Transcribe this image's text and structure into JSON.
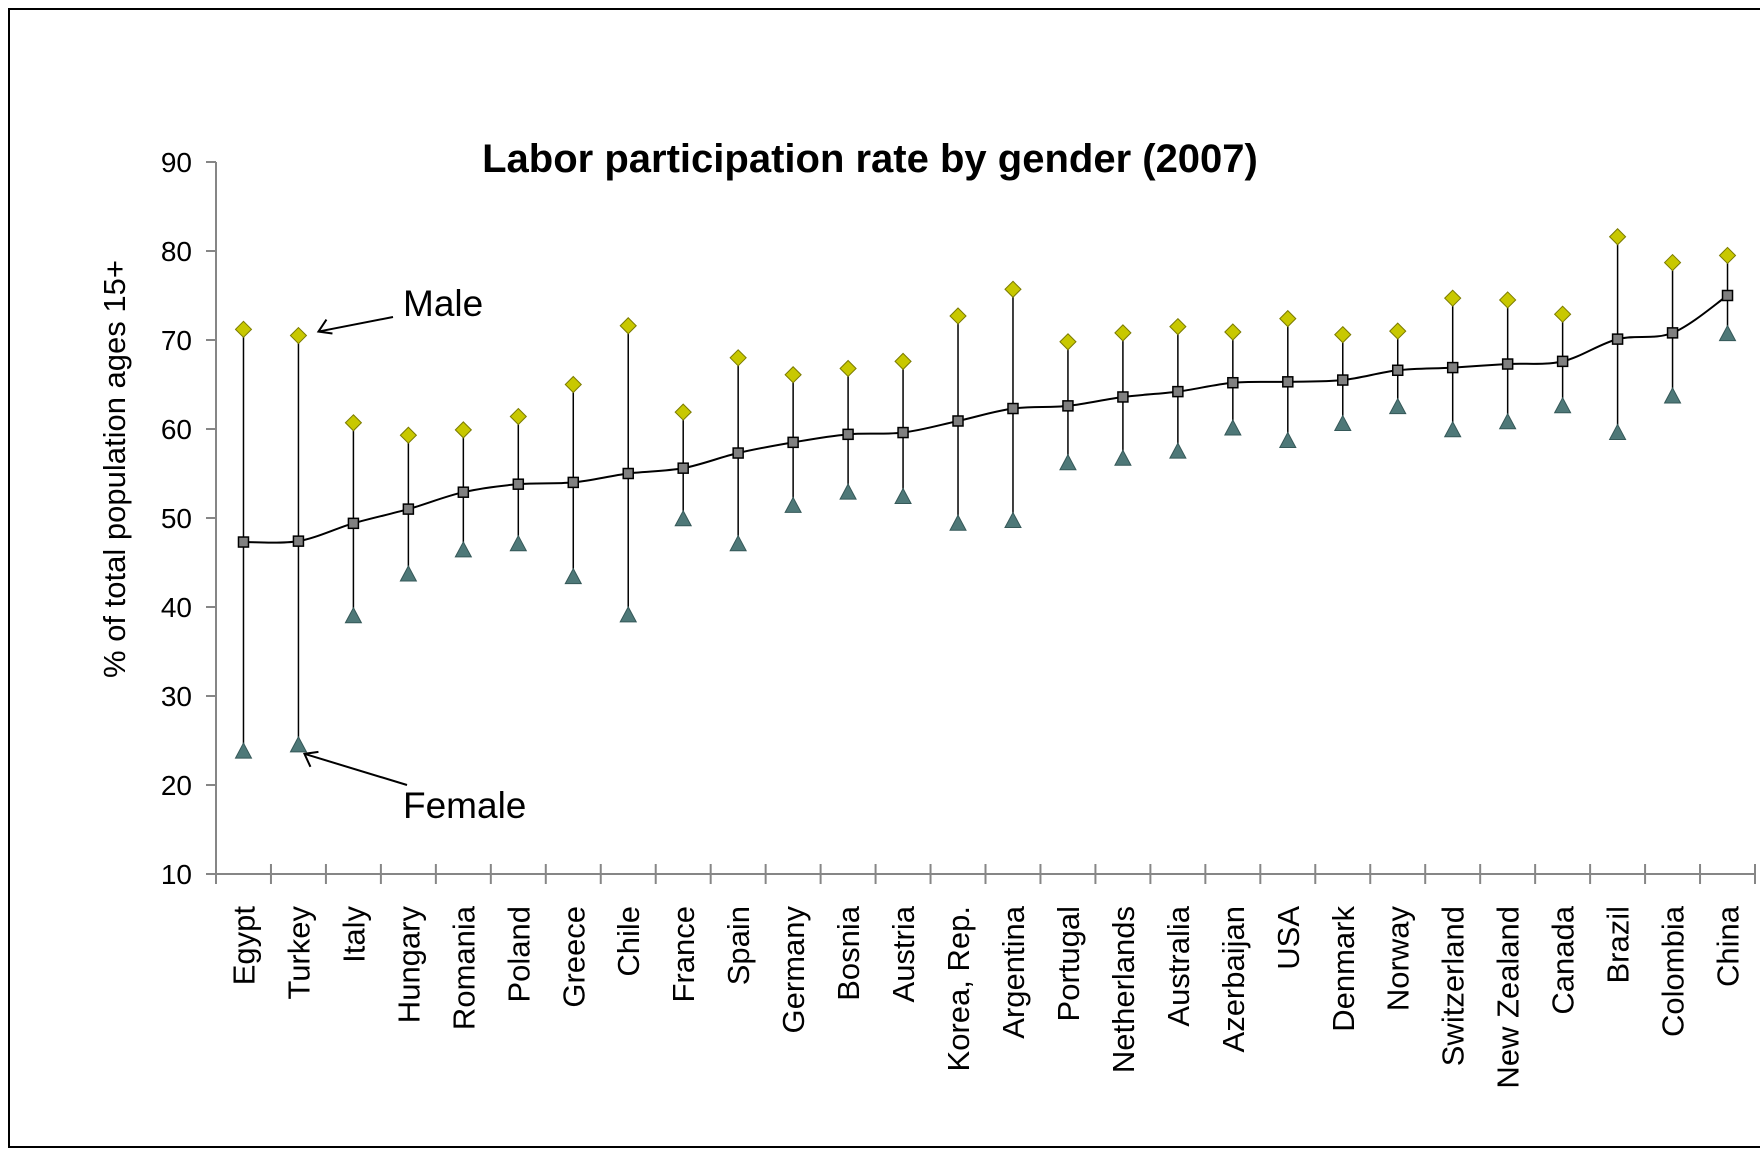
{
  "chart_data": {
    "type": "scatter",
    "title": "Labor participation rate by gender (2007)",
    "ylabel": "% of total population ages 15+",
    "xlabel": "",
    "ylim": [
      10,
      90
    ],
    "yticks": [
      10,
      20,
      30,
      40,
      50,
      60,
      70,
      80,
      90
    ],
    "grid": false,
    "categories": [
      "Egypt",
      "Turkey",
      "Italy",
      "Hungary",
      "Romania",
      "Poland",
      "Greece",
      "Chile",
      "France",
      "Spain",
      "Germany",
      "Bosnia",
      "Austria",
      "Korea, Rep.",
      "Argentina",
      "Portugal",
      "Netherlands",
      "Australia",
      "Azerbaijan",
      "USA",
      "Denmark",
      "Norway",
      "Switzerland",
      "New Zealand",
      "Canada",
      "Brazil",
      "Colombia",
      "China"
    ],
    "series": [
      {
        "name": "Male",
        "marker": "diamond",
        "color": "#C8C800",
        "values": [
          71.2,
          70.5,
          60.7,
          59.3,
          59.9,
          61.4,
          65.0,
          71.6,
          61.9,
          68.0,
          66.1,
          66.8,
          67.6,
          72.7,
          75.7,
          69.8,
          70.8,
          71.5,
          70.9,
          72.4,
          70.6,
          71.0,
          74.7,
          74.5,
          72.9,
          81.6,
          78.7,
          79.5
        ]
      },
      {
        "name": "Female",
        "marker": "triangle",
        "color": "#4E7878",
        "values": [
          23.7,
          24.4,
          38.9,
          43.6,
          46.3,
          47.0,
          43.3,
          39.0,
          49.8,
          47.0,
          51.3,
          52.8,
          52.3,
          49.3,
          49.6,
          56.1,
          56.6,
          57.4,
          60.0,
          58.6,
          60.5,
          62.4,
          59.8,
          60.7,
          62.5,
          59.5,
          63.6,
          70.6
        ]
      },
      {
        "marker": "square",
        "color": "#808080",
        "values": [
          47.3,
          47.4,
          49.4,
          51.0,
          52.9,
          53.8,
          54.0,
          55.0,
          55.6,
          57.3,
          58.5,
          59.4,
          59.6,
          60.9,
          62.3,
          62.6,
          63.6,
          64.2,
          65.2,
          65.3,
          65.5,
          66.6,
          66.9,
          67.3,
          67.6,
          70.1,
          70.8,
          75.0
        ]
      }
    ],
    "trend_line": {
      "type": "moving-average",
      "color": "#000000"
    },
    "annotations": [
      {
        "text": "Male",
        "points_to": "Turkey",
        "series": "Male"
      },
      {
        "text": "Female",
        "points_to": "Turkey",
        "series": "Female"
      }
    ]
  }
}
